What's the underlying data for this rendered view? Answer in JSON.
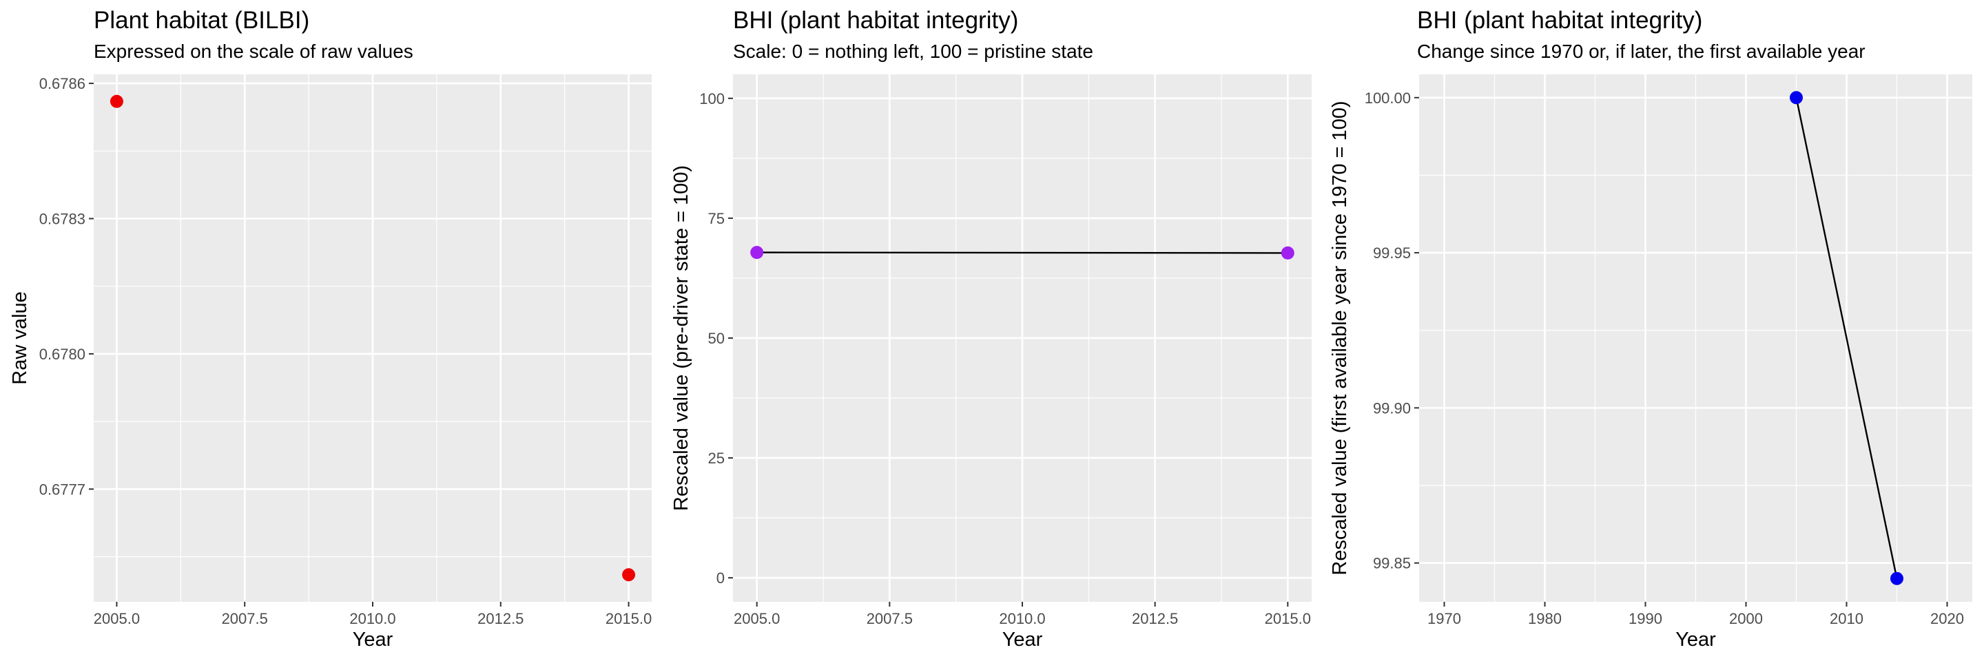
{
  "chart_data": [
    {
      "type": "scatter",
      "title": "Plant habitat (BILBI)",
      "subtitle": "Expressed on the scale of raw values",
      "xlabel": "Year",
      "ylabel": "Raw value",
      "xlim": [
        2004.55,
        2015.45
      ],
      "ylim": [
        0.67745,
        0.67862
      ],
      "xticks": [
        2005.0,
        2007.5,
        2010.0,
        2012.5,
        2015.0
      ],
      "xtick_labels": [
        "2005.0",
        "2007.5",
        "2010.0",
        "2012.5",
        "2015.0"
      ],
      "yticks": [
        0.6777,
        0.678,
        0.6783,
        0.6786
      ],
      "ytick_labels": [
        "0.6777",
        "0.6780",
        "0.6783",
        "0.6786"
      ],
      "line": false,
      "point_color": "#ee0000",
      "x": [
        2005,
        2015
      ],
      "y": [
        0.67856,
        0.67751
      ]
    },
    {
      "type": "line",
      "title": "BHI (plant habitat integrity)",
      "subtitle": "Scale: 0 = nothing left, 100 = pristine state",
      "xlabel": "Year",
      "ylabel": "Rescaled value (pre-driver state = 100)",
      "xlim": [
        2004.55,
        2015.45
      ],
      "ylim": [
        -5,
        105
      ],
      "xticks": [
        2005.0,
        2007.5,
        2010.0,
        2012.5,
        2015.0
      ],
      "xtick_labels": [
        "2005.0",
        "2007.5",
        "2010.0",
        "2012.5",
        "2015.0"
      ],
      "yticks": [
        0,
        25,
        50,
        75,
        100
      ],
      "ytick_labels": [
        "0",
        "25",
        "50",
        "75",
        "100"
      ],
      "line": true,
      "point_color": "#a020f0",
      "x": [
        2005,
        2015
      ],
      "y": [
        67.86,
        67.75
      ]
    },
    {
      "type": "line",
      "title": "BHI (plant habitat integrity)",
      "subtitle": "Change since 1970 or, if later, the first available year",
      "xlabel": "Year",
      "ylabel": "Rescaled value (first available year since 1970 = 100)",
      "xlim": [
        1967.5,
        2022.5
      ],
      "ylim": [
        99.8375,
        100.0075
      ],
      "xticks": [
        1970,
        1980,
        1990,
        2000,
        2010,
        2020
      ],
      "xtick_labels": [
        "1970",
        "1980",
        "1990",
        "2000",
        "2010",
        "2020"
      ],
      "yticks": [
        99.85,
        99.9,
        99.95,
        100.0
      ],
      "ytick_labels": [
        "99.85",
        "99.90",
        "99.95",
        "100.00"
      ],
      "line": true,
      "point_color": "#0000ee",
      "x": [
        2005,
        2015
      ],
      "y": [
        100.0,
        99.845
      ]
    }
  ]
}
